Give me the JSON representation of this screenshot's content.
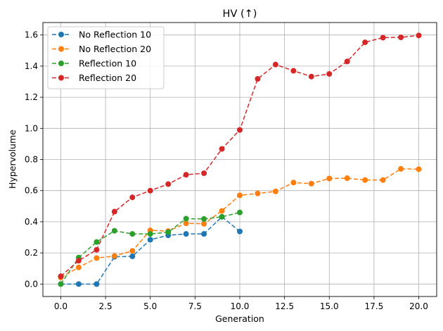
{
  "chart_data": {
    "type": "line",
    "title": "HV (↑)",
    "xlabel": "Generation",
    "ylabel": "Hypervolume",
    "xlim": [
      -1.0,
      21.0
    ],
    "ylim": [
      -0.08,
      1.68
    ],
    "xticks": [
      0.0,
      2.5,
      5.0,
      7.5,
      10.0,
      12.5,
      15.0,
      17.5,
      20.0
    ],
    "xtick_labels": [
      "0.0",
      "2.5",
      "5.0",
      "7.5",
      "10.0",
      "12.5",
      "15.0",
      "17.5",
      "20.0"
    ],
    "yticks": [
      0.0,
      0.2,
      0.4,
      0.6,
      0.8,
      1.0,
      1.2,
      1.4,
      1.6
    ],
    "ytick_labels": [
      "0.0",
      "0.2",
      "0.4",
      "0.6",
      "0.8",
      "1.0",
      "1.2",
      "1.4",
      "1.6"
    ],
    "grid": true,
    "legend_position": "top-left",
    "series": [
      {
        "name": "No Reflection 10",
        "color": "#1f77b4",
        "x": [
          0,
          1,
          2,
          3,
          4,
          5,
          6,
          7,
          8,
          9,
          10
        ],
        "y": [
          0.0,
          0.0,
          0.0,
          0.175,
          0.178,
          0.285,
          0.313,
          0.322,
          0.322,
          0.432,
          0.338
        ]
      },
      {
        "name": "No Reflection 20",
        "color": "#ff7f0e",
        "x": [
          0,
          1,
          2,
          3,
          4,
          5,
          6,
          7,
          8,
          9,
          10,
          11,
          12,
          13,
          14,
          15,
          16,
          17,
          18,
          19,
          20
        ],
        "y": [
          0.042,
          0.107,
          0.167,
          0.18,
          0.213,
          0.345,
          0.34,
          0.39,
          0.387,
          0.47,
          0.57,
          0.582,
          0.595,
          0.652,
          0.645,
          0.678,
          0.68,
          0.668,
          0.668,
          0.74,
          0.738
        ]
      },
      {
        "name": "Reflection 10",
        "color": "#2ca02c",
        "x": [
          0,
          1,
          2,
          3,
          4,
          5,
          6,
          7,
          8,
          9,
          10
        ],
        "y": [
          0.0,
          0.17,
          0.27,
          0.342,
          0.322,
          0.322,
          0.333,
          0.42,
          0.418,
          0.432,
          0.46
        ]
      },
      {
        "name": "Reflection 20",
        "color": "#d62728",
        "x": [
          0,
          1,
          2,
          3,
          4,
          5,
          6,
          7,
          8,
          9,
          10,
          11,
          12,
          13,
          14,
          15,
          16,
          17,
          18,
          19,
          20
        ],
        "y": [
          0.05,
          0.15,
          0.22,
          0.465,
          0.557,
          0.6,
          0.642,
          0.702,
          0.712,
          0.868,
          0.99,
          1.318,
          1.41,
          1.37,
          1.333,
          1.35,
          1.43,
          1.553,
          1.583,
          1.585,
          1.597
        ]
      }
    ]
  }
}
